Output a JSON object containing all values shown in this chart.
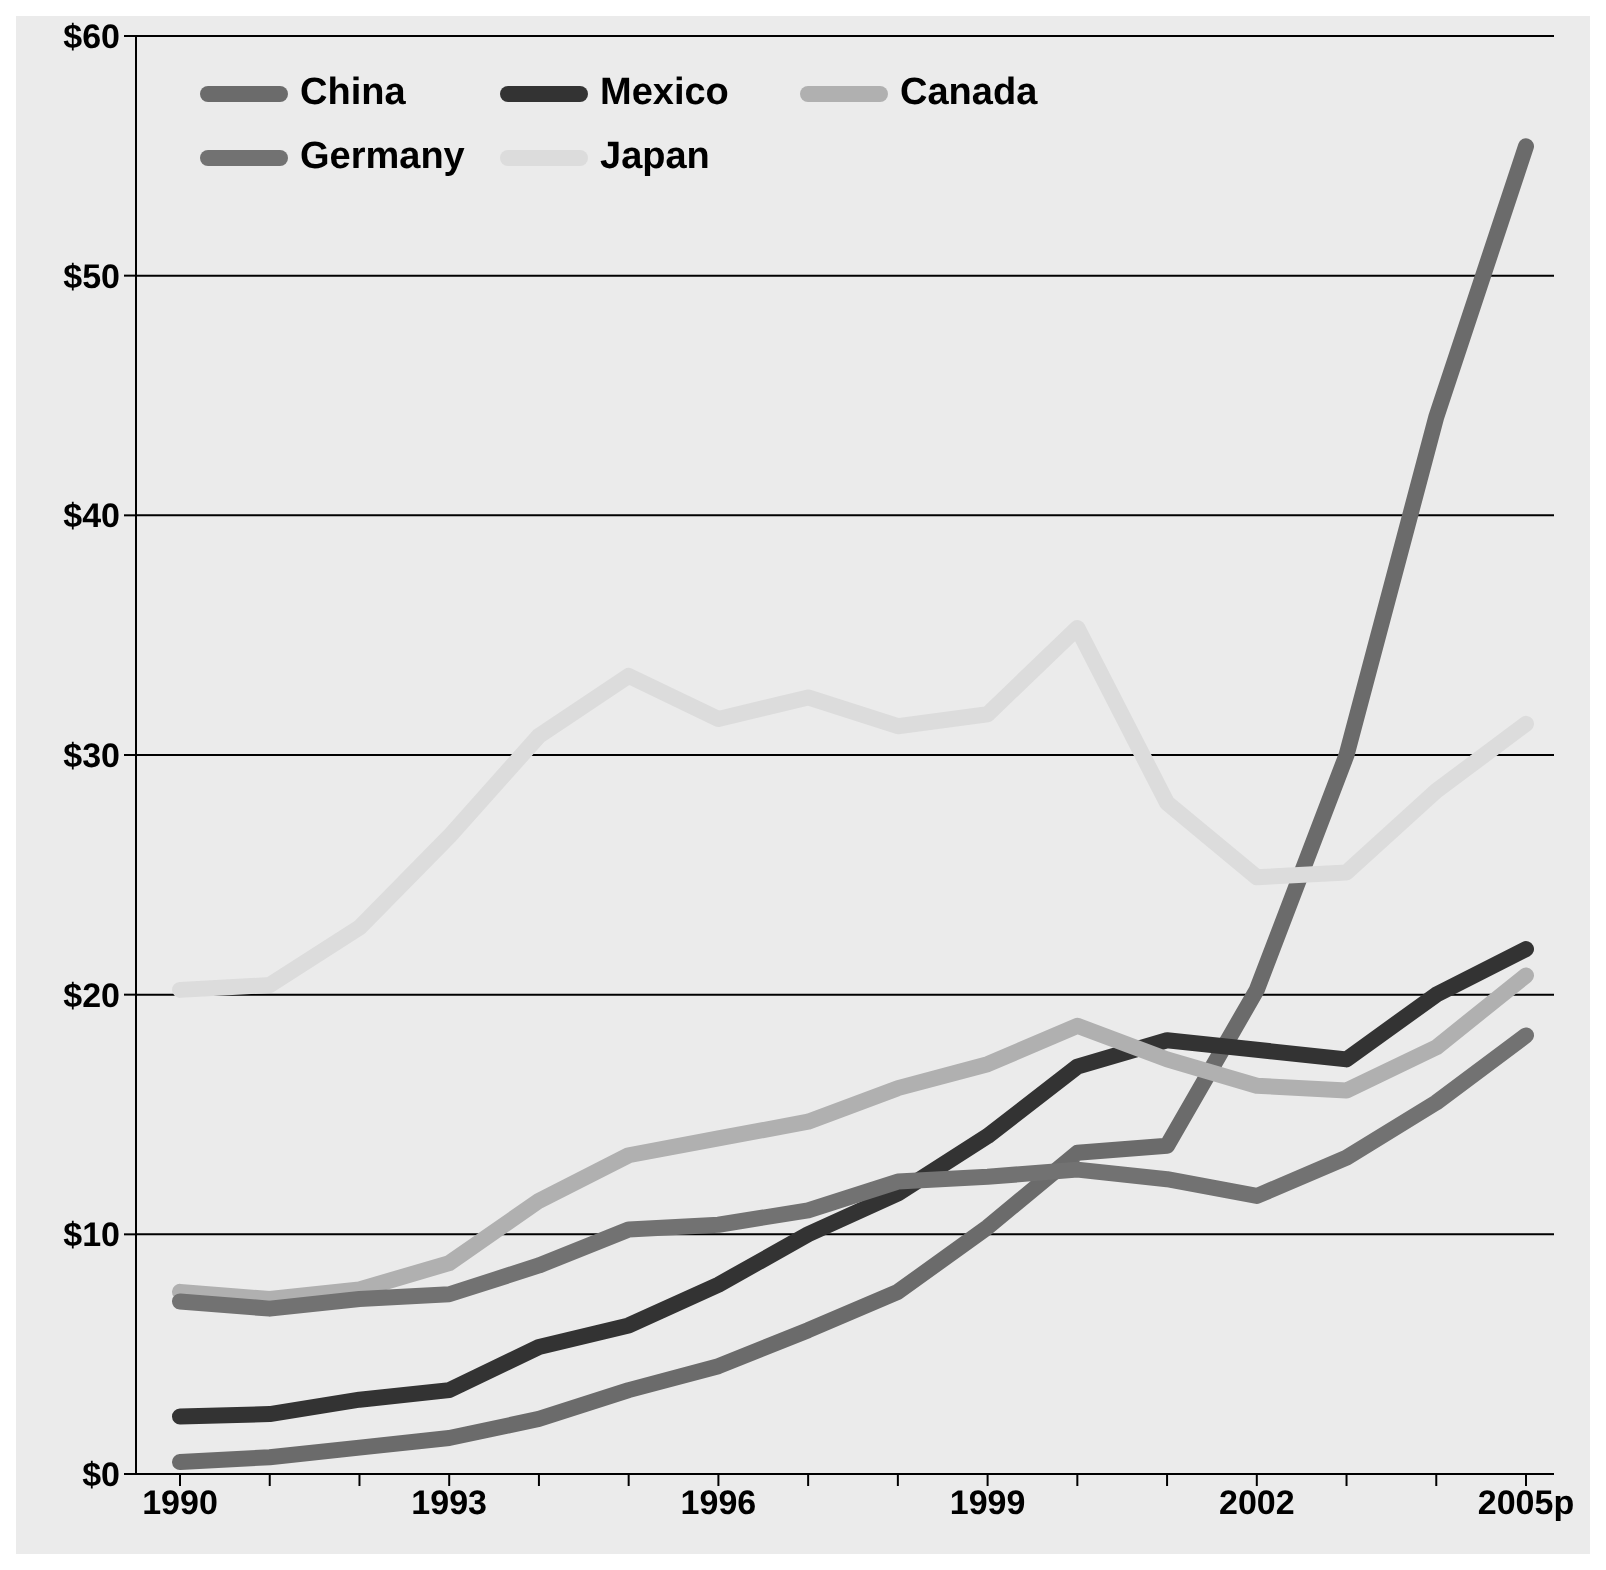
{
  "chart_data": {
    "type": "line",
    "categories": [
      "1990",
      null,
      null,
      "1993",
      null,
      null,
      "1996",
      null,
      null,
      "1999",
      null,
      null,
      "2002",
      null,
      null,
      "2005p"
    ],
    "series": [
      {
        "name": "China",
        "color": "#6b6b6b",
        "values": [
          0.5,
          0.7,
          1.1,
          1.5,
          2.3,
          3.5,
          4.5,
          6.0,
          7.6,
          10.3,
          13.4,
          13.7,
          20.2,
          30.0,
          44.1,
          55.4
        ]
      },
      {
        "name": "Mexico",
        "color": "#333333",
        "values": [
          2.4,
          2.5,
          3.1,
          3.5,
          5.3,
          6.2,
          7.9,
          10.0,
          11.7,
          14.1,
          17.0,
          18.1,
          17.7,
          17.3,
          20.0,
          21.9
        ]
      },
      {
        "name": "Canada",
        "color": "#b0b0b0",
        "values": [
          7.6,
          7.3,
          7.7,
          8.8,
          11.4,
          13.3,
          14.0,
          14.7,
          16.1,
          17.1,
          18.7,
          17.3,
          16.2,
          16.0,
          17.8,
          20.8
        ]
      },
      {
        "name": "Germany",
        "color": "#727272",
        "values": [
          7.2,
          6.9,
          7.3,
          7.5,
          8.7,
          10.2,
          10.4,
          11.0,
          12.2,
          12.4,
          12.7,
          12.3,
          11.6,
          13.2,
          15.5,
          18.3
        ]
      },
      {
        "name": "Japan",
        "color": "#dcdcdc",
        "values": [
          20.2,
          20.4,
          22.8,
          26.6,
          30.8,
          33.3,
          31.5,
          32.4,
          31.2,
          31.7,
          35.3,
          28.0,
          24.9,
          25.1,
          28.5,
          31.3
        ]
      }
    ],
    "ylim": [
      0,
      60
    ],
    "yticks": [
      {
        "value": 0,
        "label": "$0"
      },
      {
        "value": 10,
        "label": "$10"
      },
      {
        "value": 20,
        "label": "$20"
      },
      {
        "value": 30,
        "label": "$30"
      },
      {
        "value": 40,
        "label": "$40"
      },
      {
        "value": 50,
        "label": "$50"
      },
      {
        "value": 60,
        "label": "$60"
      }
    ],
    "grid": "y",
    "legend": "top left",
    "marker": "none",
    "line_style": "solid"
  }
}
